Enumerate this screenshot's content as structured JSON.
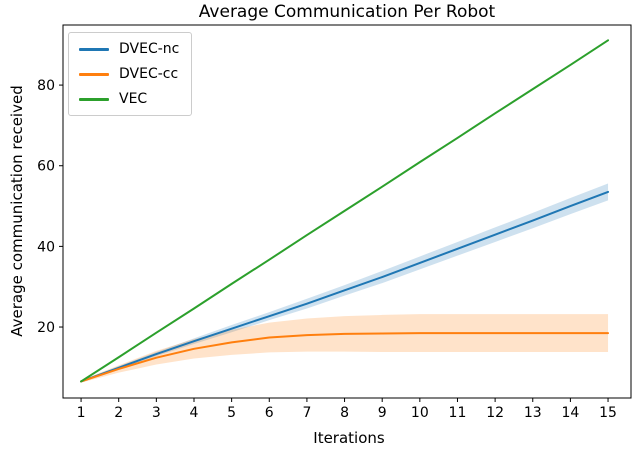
{
  "title": "Average Communication Per Robot",
  "xlabel": "Iterations",
  "ylabel": "Average communication received",
  "legend": [
    {
      "label": "DVEC-nc",
      "color": "#1f77b4"
    },
    {
      "label": "DVEC-cc",
      "color": "#ff7f0e"
    },
    {
      "label": "VEC",
      "color": "#2ca02c"
    }
  ],
  "colors": {
    "background": "#ffffff",
    "spine": "#000000",
    "dvec_nc": "#1f77b4",
    "dvec_cc": "#ff7f0e",
    "vec": "#2ca02c",
    "band_opacity": 0.22
  },
  "chart_data": {
    "type": "line",
    "title": "Average Communication Per Robot",
    "xlabel": "Iterations",
    "ylabel": "Average communication received",
    "x": [
      1,
      2,
      3,
      4,
      5,
      6,
      7,
      8,
      9,
      10,
      11,
      12,
      13,
      14,
      15
    ],
    "series": [
      {
        "name": "DVEC-nc",
        "color": "#1f77b4",
        "values": [
          6.5,
          9.9,
          13.3,
          16.5,
          19.6,
          22.7,
          25.8,
          29.1,
          32.4,
          35.9,
          39.4,
          42.9,
          46.4,
          50.0,
          53.5
        ],
        "band_halfwidth": [
          0.2,
          0.4,
          0.5,
          0.7,
          0.9,
          1.0,
          1.2,
          1.3,
          1.5,
          1.6,
          1.7,
          1.8,
          1.9,
          2.0,
          2.1
        ]
      },
      {
        "name": "DVEC-cc",
        "color": "#ff7f0e",
        "values": [
          6.5,
          9.6,
          12.4,
          14.6,
          16.2,
          17.4,
          18.0,
          18.3,
          18.4,
          18.5,
          18.5,
          18.5,
          18.5,
          18.5,
          18.5
        ],
        "band_halfwidth": [
          0.3,
          0.9,
          1.7,
          2.4,
          3.1,
          3.7,
          4.1,
          4.4,
          4.6,
          4.7,
          4.7,
          4.7,
          4.7,
          4.7,
          4.7
        ]
      },
      {
        "name": "VEC",
        "color": "#2ca02c",
        "values": [
          6.5,
          12.5,
          18.6,
          24.6,
          30.7,
          36.7,
          42.8,
          48.8,
          54.8,
          60.9,
          66.9,
          73.0,
          79.0,
          85.0,
          91.1
        ],
        "band_halfwidth": null
      }
    ],
    "xticks": [
      1,
      2,
      3,
      4,
      5,
      6,
      7,
      8,
      9,
      10,
      11,
      12,
      13,
      14,
      15
    ],
    "yticks": [
      20,
      40,
      60,
      80
    ],
    "xlim": [
      0.52,
      15.61
    ],
    "ylim": [
      2.4,
      94.9
    ],
    "legend_position": "upper left",
    "grid": false
  }
}
